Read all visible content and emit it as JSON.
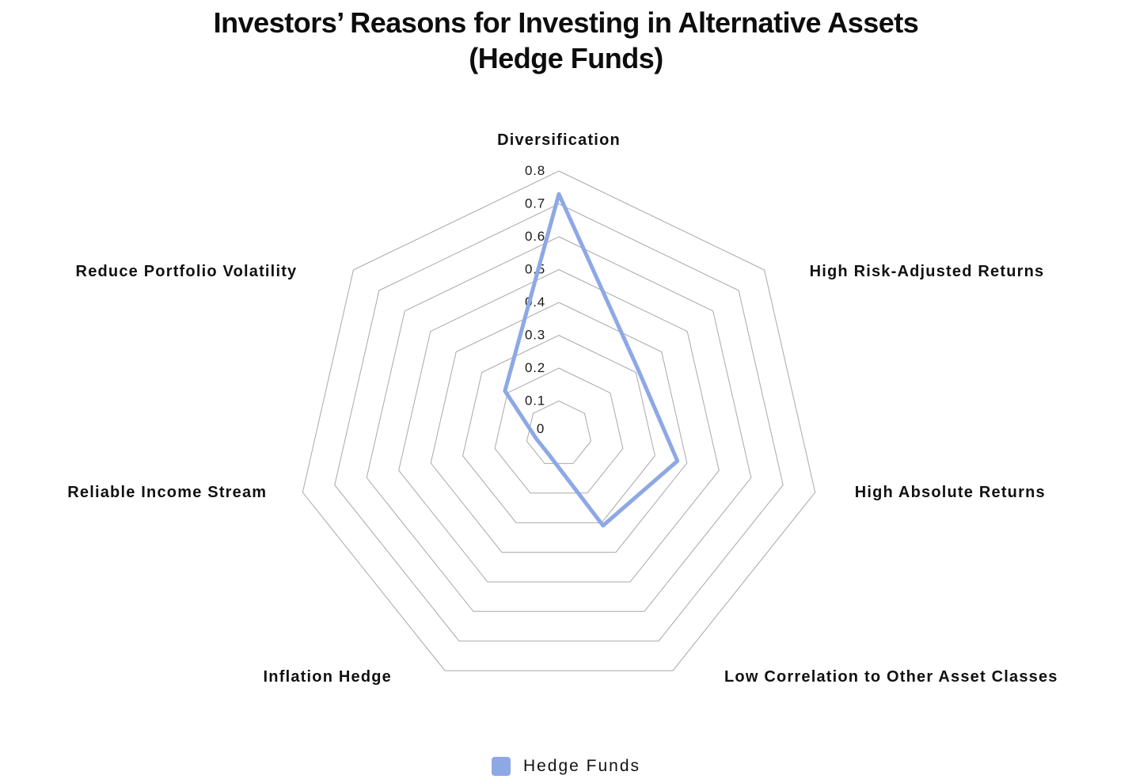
{
  "title": {
    "line1": "Investors’ Reasons for Investing in Alternative Assets",
    "line2": "(Hedge Funds)"
  },
  "legend": {
    "items": [
      {
        "label": "Hedge Funds",
        "color": "#8EA8E5"
      }
    ]
  },
  "chart_data": {
    "type": "radar",
    "categories": [
      "Diversification",
      "High Risk-Adjusted Returns",
      "High Absolute Returns",
      "Low Correlation to Other Asset Classes",
      "Inflation Hedge",
      "Reliable Income Stream",
      "Reduce Portfolio Volatility"
    ],
    "series": [
      {
        "name": "Hedge Funds",
        "color": "#8EA8E5",
        "values": [
          0.73,
          0.31,
          0.37,
          0.31,
          0.07,
          0.07,
          0.21
        ]
      }
    ],
    "radial_axis": {
      "min": 0,
      "max": 0.8,
      "tick_step": 0.1,
      "tick_labels": [
        "0",
        "0.1",
        "0.2",
        "0.3",
        "0.4",
        "0.5",
        "0.6",
        "0.7",
        "0.8"
      ]
    },
    "grid": {
      "shape": "polygon",
      "sides": 7,
      "rings": 8,
      "show_spokes": false,
      "start_angle_deg": 90,
      "direction": "clockwise"
    },
    "colors": {
      "series_line": "#8EA8E5",
      "grid_line": "#999999",
      "text": "#111111",
      "tick_text": "#1a1a1a",
      "background": "#FFFFFF"
    },
    "legend_position": "bottom-center"
  }
}
